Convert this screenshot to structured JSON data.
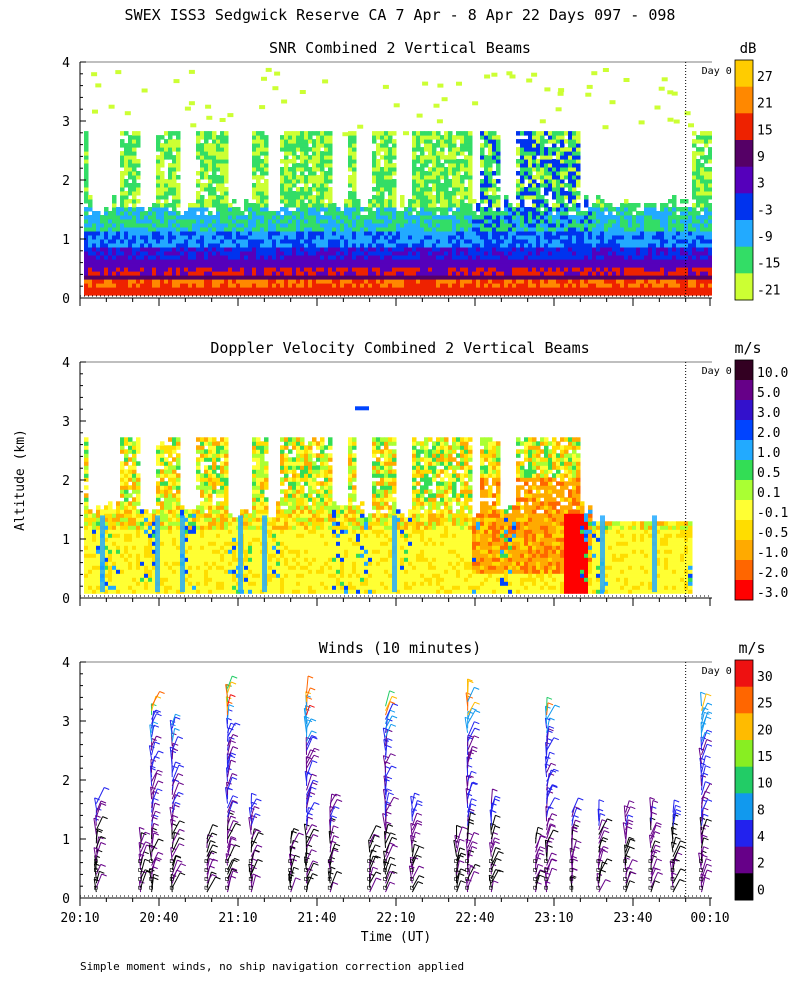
{
  "title": "SWEX ISS3 Sedgwick Reserve CA   7 Apr -  8 Apr 22 Days 097 - 098",
  "footnote": "Simple moment winds, no ship navigation correction applied",
  "xlabel": "Time (UT)",
  "ylabel": "Altitude (km)",
  "day_marker_label": "Day 0",
  "x_ticks": [
    "20:10",
    "20:40",
    "21:10",
    "21:40",
    "22:10",
    "22:40",
    "23:10",
    "23:40",
    "00:10"
  ],
  "y_ticks": [
    "0",
    "1",
    "2",
    "3",
    "4"
  ],
  "chart_data": [
    {
      "type": "heatmap",
      "title": "SNR Combined 2 Vertical Beams",
      "units": "dB",
      "xlim_hours_ut": [
        20.1667,
        24.1667
      ],
      "ylim_km": [
        0,
        4
      ],
      "colorbar": {
        "labels": [
          "27",
          "21",
          "15",
          "9",
          "3",
          "-3",
          "-9",
          "-15",
          "-21"
        ],
        "colors": [
          "#ffcc00",
          "#ff8800",
          "#ee2200",
          "#550066",
          "#5500bb",
          "#0033ee",
          "#22aaff",
          "#33dd66",
          "#ccff33"
        ]
      },
      "description_layers_km": {
        "strong_surface": [
          0.05,
          0.35
        ],
        "dark_band": [
          0.35,
          0.6
        ],
        "blue_layer": [
          0.6,
          1.1
        ],
        "green_upper": [
          1.1,
          2.8
        ]
      }
    },
    {
      "type": "heatmap",
      "title": "Doppler Velocity Combined 2 Vertical Beams",
      "units": "m/s",
      "xlim_hours_ut": [
        20.1667,
        24.1667
      ],
      "ylim_km": [
        0,
        4
      ],
      "colorbar": {
        "labels": [
          "10.0",
          "5.0",
          "3.0",
          "2.0",
          "1.0",
          "0.5",
          "0.1",
          "-0.1",
          "-0.5",
          "-1.0",
          "-2.0",
          "-3.0"
        ],
        "colors": [
          "#330022",
          "#660088",
          "#3311cc",
          "#0044ff",
          "#22aaff",
          "#33dd55",
          "#aaff33",
          "#ffff33",
          "#ffdd00",
          "#ffaa00",
          "#ff6600",
          "#ff0000"
        ]
      }
    },
    {
      "type": "scatter",
      "title": "Winds (10 minutes)",
      "units": "m/s",
      "xlim_hours_ut": [
        20.1667,
        24.1667
      ],
      "ylim_km": [
        0,
        4
      ],
      "colorbar": {
        "labels": [
          "30",
          "25",
          "20",
          "15",
          "10",
          "8",
          "4",
          "2",
          "0"
        ],
        "colors": [
          "#ee1111",
          "#ff6600",
          "#ffbb00",
          "#88ee22",
          "#22cc66",
          "#1199ee",
          "#2222ee",
          "#660088",
          "#000000"
        ]
      },
      "profiles": [
        {
          "time": 20.27,
          "top_km": 1.6
        },
        {
          "time": 20.55,
          "top_km": 1.0
        },
        {
          "time": 20.62,
          "top_km": 3.3
        },
        {
          "time": 20.75,
          "top_km": 3.0
        },
        {
          "time": 20.97,
          "top_km": 1.0
        },
        {
          "time": 21.1,
          "top_km": 3.6
        },
        {
          "time": 21.25,
          "top_km": 1.6
        },
        {
          "time": 21.5,
          "top_km": 1.0
        },
        {
          "time": 21.6,
          "top_km": 3.5
        },
        {
          "time": 21.75,
          "top_km": 1.6
        },
        {
          "time": 22.0,
          "top_km": 1.0
        },
        {
          "time": 22.1,
          "top_km": 3.3
        },
        {
          "time": 22.27,
          "top_km": 1.6
        },
        {
          "time": 22.55,
          "top_km": 1.0
        },
        {
          "time": 22.62,
          "top_km": 3.5
        },
        {
          "time": 22.77,
          "top_km": 1.6
        },
        {
          "time": 23.05,
          "top_km": 1.0
        },
        {
          "time": 23.12,
          "top_km": 3.2
        },
        {
          "time": 23.28,
          "top_km": 1.5
        },
        {
          "time": 23.45,
          "top_km": 1.4
        },
        {
          "time": 23.62,
          "top_km": 1.5
        },
        {
          "time": 23.78,
          "top_km": 1.5
        },
        {
          "time": 23.92,
          "top_km": 1.5
        },
        {
          "time": 24.1,
          "top_km": 3.3
        }
      ]
    }
  ]
}
